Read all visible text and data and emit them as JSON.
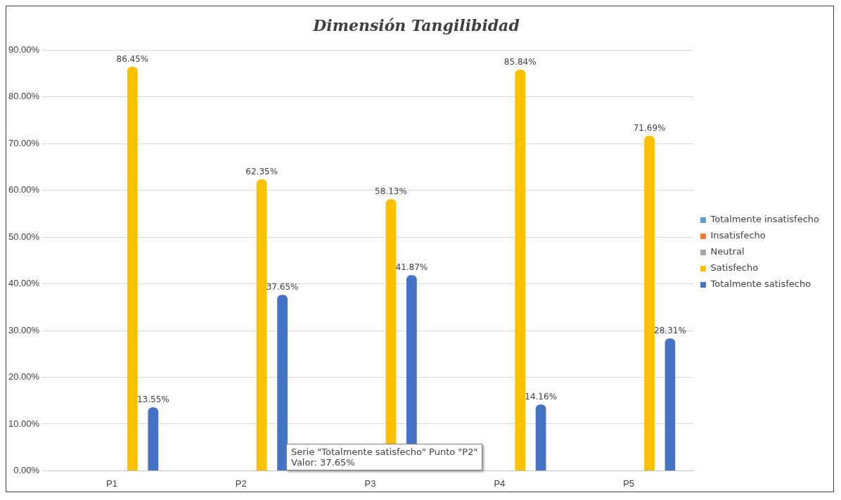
{
  "chart_data": {
    "type": "bar",
    "title": "Dimensión Tangilibidad",
    "categories": [
      "P1",
      "P2",
      "P3",
      "P4",
      "P5"
    ],
    "series": [
      {
        "name": "Totalmente insatisfecho",
        "color": "#5b9bd5",
        "values": [
          0,
          0,
          0,
          0,
          0
        ]
      },
      {
        "name": "Insatisfecho",
        "color": "#ed7d31",
        "values": [
          0,
          0,
          0,
          0,
          0
        ]
      },
      {
        "name": "Neutral",
        "color": "#a5a5a5",
        "values": [
          0,
          0,
          0,
          0,
          0
        ]
      },
      {
        "name": "Satisfecho",
        "color": "#ffc000",
        "values": [
          86.45,
          62.35,
          58.13,
          85.84,
          71.69
        ],
        "value_labels": [
          "86.45%",
          "62.35%",
          "58.13%",
          "85.84%",
          "71.69%"
        ]
      },
      {
        "name": "Totalmente satisfecho",
        "color": "#4472c4",
        "values": [
          13.55,
          37.65,
          41.87,
          14.16,
          28.31
        ],
        "value_labels": [
          "13.55%",
          "37.65%",
          "41.87%",
          "14.16%",
          "28.31%"
        ]
      }
    ],
    "ylim": [
      0,
      90
    ],
    "yticks": [
      {
        "value": 0,
        "label": "0.00%"
      },
      {
        "value": 10,
        "label": "10.00%"
      },
      {
        "value": 20,
        "label": "20.00%"
      },
      {
        "value": 30,
        "label": "30.00%"
      },
      {
        "value": 40,
        "label": "40.00%"
      },
      {
        "value": 50,
        "label": "50.00%"
      },
      {
        "value": 60,
        "label": "60.00%"
      },
      {
        "value": 70,
        "label": "70.00%"
      },
      {
        "value": 80,
        "label": "80.00%"
      },
      {
        "value": 90,
        "label": "90.00%"
      }
    ],
    "grid": "y",
    "legend": "right",
    "annotations": [
      "Serie \"Totalmente satisfecho\" Punto \"P2\"\nValor: 37.65%"
    ]
  }
}
